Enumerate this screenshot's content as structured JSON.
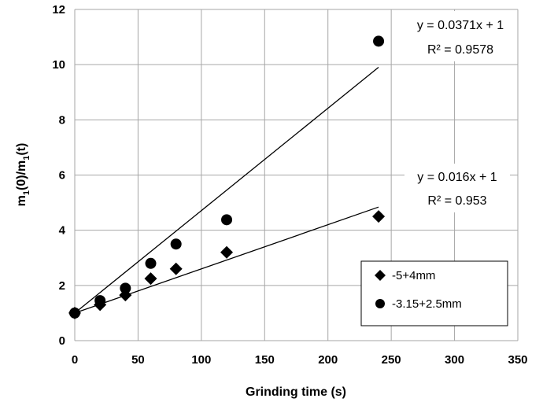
{
  "chart_data": {
    "type": "scatter",
    "xlabel": "Grinding time (s)",
    "ylabel_main": "m",
    "ylabel_sub1": "1",
    "ylabel_mid": "(0)/m",
    "ylabel_sub2": "1",
    "ylabel_end": "(t)",
    "xlim": [
      0,
      350
    ],
    "ylim": [
      0,
      12
    ],
    "x_ticks": [
      0,
      50,
      100,
      150,
      200,
      250,
      300,
      350
    ],
    "y_ticks": [
      0,
      2,
      4,
      6,
      8,
      10,
      12
    ],
    "x_tick_labels": [
      "0",
      "50",
      "100",
      "150",
      "200",
      "250",
      "300",
      "350"
    ],
    "y_tick_labels": [
      "0",
      "2",
      "4",
      "6",
      "8",
      "10",
      "12"
    ],
    "grid": true,
    "legend_position": "right-middle",
    "series": [
      {
        "name": "-5+4mm",
        "marker": "diamond",
        "color": "#000000",
        "x": [
          0,
          20,
          40,
          60,
          80,
          120,
          240
        ],
        "y": [
          1.0,
          1.3,
          1.65,
          2.25,
          2.6,
          3.2,
          4.5
        ],
        "trendline": {
          "slope": 0.016,
          "intercept": 1,
          "x_range": [
            0,
            240
          ]
        },
        "equation": "y = 0.016x + 1",
        "r2": "R² = 0.953"
      },
      {
        "name": "-3.15+2.5mm",
        "marker": "circle",
        "color": "#000000",
        "x": [
          0,
          20,
          40,
          60,
          80,
          120,
          240
        ],
        "y": [
          1.0,
          1.45,
          1.9,
          2.8,
          3.5,
          4.38,
          10.85
        ],
        "trendline": {
          "slope": 0.0371,
          "intercept": 1,
          "x_range": [
            0,
            240
          ]
        },
        "equation": "y = 0.0371x + 1",
        "r2": "R² = 0.9578"
      }
    ]
  }
}
